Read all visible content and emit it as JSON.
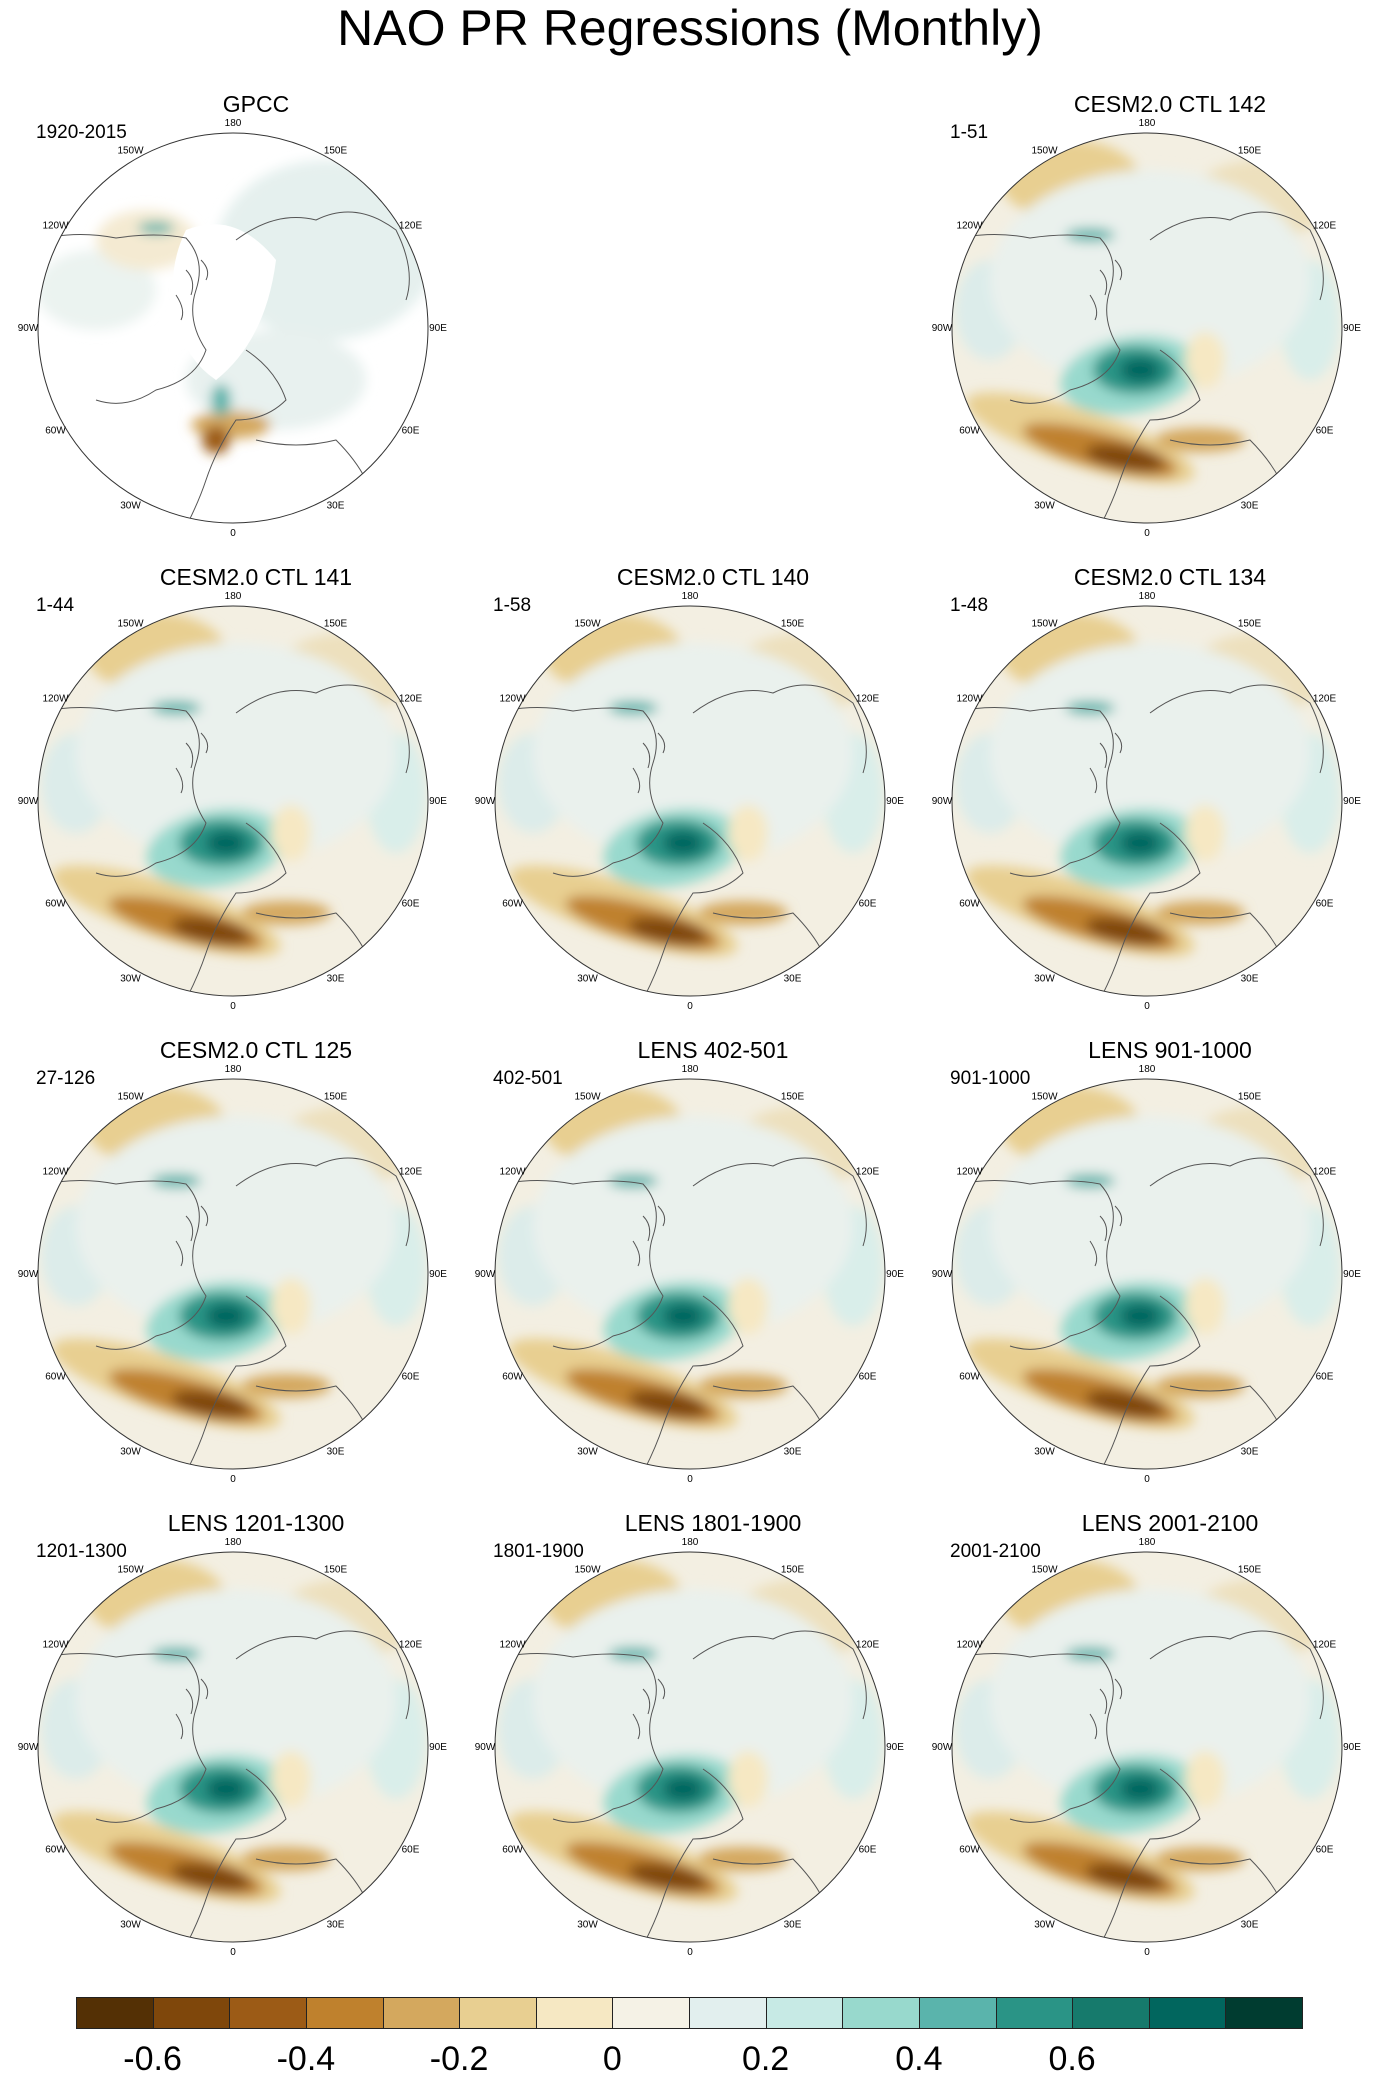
{
  "title": "NAO PR Regressions (Monthly)",
  "lon_labels": [
    "180",
    "150E",
    "120E",
    "90E",
    "60E",
    "30E",
    "0",
    "30W",
    "60W",
    "90W",
    "120W",
    "150W"
  ],
  "panels": [
    {
      "name": "GPCC",
      "period": "1920-2015",
      "type": "obs"
    },
    {
      "name": "CESM2.0 CTL 142",
      "period": "1-51",
      "type": "model"
    },
    {
      "name": "CESM2.0 CTL 141",
      "period": "1-44",
      "type": "model"
    },
    {
      "name": "CESM2.0 CTL 140",
      "period": "1-58",
      "type": "model"
    },
    {
      "name": "CESM2.0 CTL 134",
      "period": "1-48",
      "type": "model"
    },
    {
      "name": "CESM2.0 CTL 125",
      "period": "27-126",
      "type": "model"
    },
    {
      "name": "LENS 402-501",
      "period": "402-501",
      "type": "model"
    },
    {
      "name": "LENS 901-1000",
      "period": "901-1000",
      "type": "model"
    },
    {
      "name": "LENS 1201-1300",
      "period": "1201-1300",
      "type": "model"
    },
    {
      "name": "LENS 1801-1900",
      "period": "1801-1900",
      "type": "model"
    },
    {
      "name": "LENS 2001-2100",
      "period": "2001-2100",
      "type": "model"
    }
  ],
  "colorbar": {
    "colors": [
      "#543005",
      "#7f470b",
      "#9c5b16",
      "#bf812d",
      "#d4a85e",
      "#e8cf91",
      "#f6e8c3",
      "#f5f2e6",
      "#e2efee",
      "#c7eae5",
      "#98d9cd",
      "#5ab4ac",
      "#2a9486",
      "#167a6c",
      "#01665e",
      "#003c30"
    ],
    "labels": [
      "-0.6",
      "-0.4",
      "-0.2",
      "0",
      "0.2",
      "0.4",
      "0.6"
    ],
    "label_values": [
      -0.6,
      -0.4,
      -0.2,
      0,
      0.2,
      0.4,
      0.6
    ]
  }
}
